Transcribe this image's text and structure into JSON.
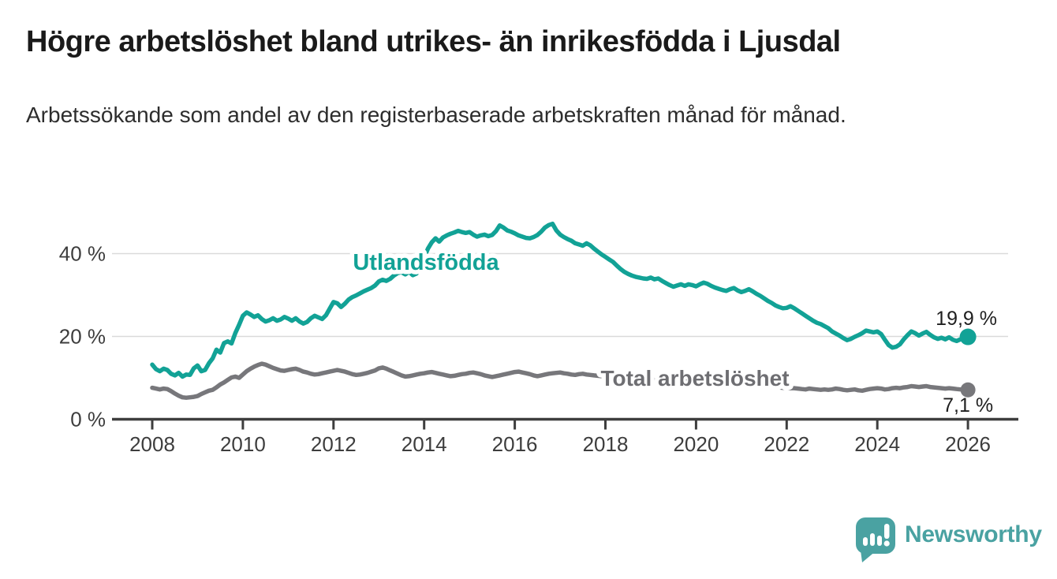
{
  "header": {
    "title": "Högre arbetslöshet bland utrikes- än inrikesfödda i Ljusdal",
    "subtitle": "Arbetssökande som andel av den registerbaserade arbetskraften månad för månad."
  },
  "branding": {
    "logo_text": "Newsworthy",
    "logo_icon": "newsworthy-chart-bubble-icon",
    "logo_color": "#4aa2a2"
  },
  "colors": {
    "series_utlandsfodda": "#12a296",
    "series_total": "#77777b",
    "series_total_label": "#6e6e72",
    "grid": "#dadada",
    "axis": "#3e3e3e",
    "axis_text": "#3d3d3d",
    "value_label_text": "#1f1f1f",
    "background": "#ffffff"
  },
  "chart_data": {
    "type": "line",
    "title": "Högre arbetslöshet bland utrikes- än inrikesfödda i Ljusdal",
    "subtitle": "Arbetssökande som andel av den registerbaserade arbetskraften månad för månad.",
    "grid": "horizontal",
    "legend": "inline-labels",
    "x_axis": {
      "unit": "year",
      "range": [
        2007.1,
        2027.1
      ],
      "ticks": [
        "2008",
        "2010",
        "2012",
        "2014",
        "2016",
        "2018",
        "2020",
        "2022",
        "2024",
        "2026"
      ],
      "tick_values": [
        2008,
        2010,
        2012,
        2014,
        2016,
        2018,
        2020,
        2022,
        2024,
        2026
      ]
    },
    "y_axis": {
      "unit": "%",
      "range": [
        0,
        50
      ],
      "ticks": [
        "0 %",
        "20 %",
        "40 %"
      ],
      "tick_values": [
        0,
        20,
        40
      ]
    },
    "series": [
      {
        "name": "Utlandsfödda",
        "color": "#12a296",
        "end_value": 19.9,
        "end_label": "19,9 %",
        "start_year": 2008,
        "step_months": 1,
        "values": [
          13.2,
          12.1,
          11.6,
          12.2,
          11.9,
          11.0,
          10.6,
          11.2,
          10.3,
          10.8,
          10.7,
          12.3,
          13.0,
          11.6,
          11.9,
          13.5,
          14.7,
          16.8,
          16.1,
          18.4,
          18.8,
          18.3,
          20.8,
          22.8,
          25.0,
          25.8,
          25.3,
          24.7,
          25.1,
          24.2,
          23.6,
          23.9,
          24.4,
          23.8,
          24.1,
          24.7,
          24.3,
          23.8,
          24.4,
          23.6,
          23.1,
          23.5,
          24.4,
          25.0,
          24.6,
          24.2,
          25.1,
          26.7,
          28.3,
          28.0,
          27.1,
          27.9,
          28.9,
          29.5,
          29.9,
          30.4,
          30.9,
          31.3,
          31.7,
          32.3,
          33.3,
          33.7,
          33.4,
          33.9,
          34.7,
          35.3,
          35.5,
          35.0,
          35.6,
          34.8,
          35.2,
          36.9,
          39.0,
          41.2,
          42.7,
          43.7,
          42.9,
          43.9,
          44.4,
          44.8,
          45.1,
          45.5,
          45.2,
          45.0,
          45.2,
          44.6,
          44.1,
          44.4,
          44.6,
          44.2,
          44.5,
          45.4,
          46.8,
          46.3,
          45.6,
          45.3,
          44.9,
          44.4,
          44.1,
          43.8,
          43.7,
          44.0,
          44.5,
          45.3,
          46.3,
          46.9,
          47.2,
          45.6,
          44.6,
          44.0,
          43.5,
          43.1,
          42.5,
          42.2,
          41.9,
          42.5,
          42.0,
          41.2,
          40.5,
          39.8,
          39.2,
          38.6,
          38.0,
          37.1,
          36.3,
          35.6,
          35.1,
          34.7,
          34.4,
          34.2,
          34.0,
          33.9,
          34.2,
          33.8,
          34.0,
          33.4,
          32.9,
          32.4,
          32.0,
          32.3,
          32.6,
          32.2,
          32.6,
          32.4,
          32.1,
          32.6,
          33.0,
          32.7,
          32.2,
          31.8,
          31.5,
          31.2,
          31.0,
          31.4,
          31.7,
          31.1,
          30.7,
          31.0,
          31.4,
          30.9,
          30.3,
          29.8,
          29.2,
          28.6,
          28.1,
          27.5,
          27.1,
          26.8,
          26.9,
          27.3,
          26.8,
          26.2,
          25.6,
          25.0,
          24.4,
          23.8,
          23.3,
          23.0,
          22.5,
          22.0,
          21.2,
          20.7,
          20.2,
          19.6,
          19.1,
          19.4,
          19.9,
          20.3,
          20.8,
          21.4,
          21.2,
          21.0,
          21.2,
          20.6,
          19.2,
          17.9,
          17.3,
          17.5,
          18.1,
          19.3,
          20.3,
          21.2,
          20.8,
          20.2,
          20.7,
          21.1,
          20.4,
          19.8,
          19.4,
          19.7,
          19.3,
          19.8,
          19.2,
          18.9,
          19.3,
          19.6,
          19.9
        ]
      },
      {
        "name": "Total arbetslöshet",
        "color": "#77777b",
        "end_value": 7.1,
        "end_label": "7,1 %",
        "start_year": 2008,
        "step_months": 1,
        "values": [
          7.6,
          7.4,
          7.2,
          7.4,
          7.3,
          6.8,
          6.2,
          5.7,
          5.3,
          5.2,
          5.3,
          5.4,
          5.6,
          6.1,
          6.5,
          6.9,
          7.1,
          7.7,
          8.4,
          8.9,
          9.5,
          10.1,
          10.3,
          10.0,
          10.8,
          11.6,
          12.2,
          12.7,
          13.1,
          13.4,
          13.2,
          12.8,
          12.4,
          12.1,
          11.8,
          11.7,
          11.9,
          12.1,
          12.2,
          11.9,
          11.5,
          11.3,
          11.0,
          10.8,
          10.9,
          11.1,
          11.3,
          11.5,
          11.7,
          11.9,
          11.7,
          11.5,
          11.2,
          10.9,
          10.7,
          10.8,
          11.0,
          11.2,
          11.5,
          11.8,
          12.3,
          12.5,
          12.2,
          11.8,
          11.4,
          11.0,
          10.6,
          10.3,
          10.4,
          10.6,
          10.8,
          11.0,
          11.1,
          11.3,
          11.4,
          11.2,
          11.0,
          10.8,
          10.6,
          10.4,
          10.5,
          10.7,
          10.9,
          11.0,
          11.2,
          11.3,
          11.1,
          10.9,
          10.6,
          10.4,
          10.2,
          10.4,
          10.6,
          10.8,
          11.0,
          11.2,
          11.4,
          11.5,
          11.3,
          11.1,
          10.9,
          10.6,
          10.4,
          10.6,
          10.8,
          11.0,
          11.1,
          11.2,
          11.3,
          11.1,
          11.0,
          10.8,
          10.7,
          10.9,
          11.0,
          10.8,
          10.7,
          10.6,
          10.5,
          10.4,
          10.3,
          10.2,
          10.2,
          10.1,
          10.1,
          10.0,
          9.9,
          9.9,
          9.8,
          9.8,
          9.7,
          9.6,
          9.5,
          9.5,
          9.4,
          9.4,
          9.3,
          9.3,
          9.2,
          9.2,
          9.1,
          9.1,
          9.2,
          9.2,
          9.2,
          9.3,
          9.3,
          9.2,
          9.1,
          9.1,
          9.0,
          8.9,
          8.8,
          8.7,
          8.6,
          8.6,
          8.5,
          8.4,
          8.3,
          8.2,
          8.1,
          8.0,
          8.0,
          7.9,
          7.8,
          7.8,
          7.7,
          7.6,
          7.6,
          7.5,
          7.5,
          7.4,
          7.3,
          7.2,
          7.4,
          7.3,
          7.2,
          7.1,
          7.2,
          7.1,
          7.2,
          7.4,
          7.3,
          7.1,
          7.0,
          7.1,
          7.2,
          7.0,
          6.9,
          7.1,
          7.3,
          7.4,
          7.5,
          7.4,
          7.2,
          7.3,
          7.5,
          7.6,
          7.5,
          7.7,
          7.8,
          8.0,
          7.9,
          7.8,
          7.9,
          8.0,
          7.8,
          7.7,
          7.6,
          7.5,
          7.4,
          7.5,
          7.4,
          7.3,
          7.2,
          7.1,
          7.1
        ]
      }
    ]
  }
}
